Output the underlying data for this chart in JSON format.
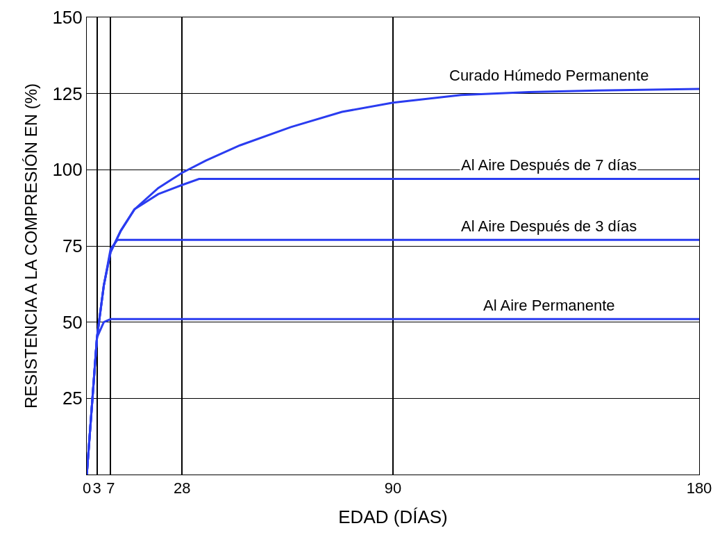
{
  "chart_data": {
    "type": "line",
    "xlabel": "EDAD (DÍAS)",
    "ylabel": "RESISTENCIA A LA COMPRESIÓN EN (%)",
    "xlim": [
      0,
      180
    ],
    "xticks": [
      0,
      3,
      7,
      28,
      90,
      180
    ],
    "ylim": [
      0,
      150
    ],
    "yticks": [
      25,
      50,
      75,
      100,
      125,
      150
    ],
    "grid": true,
    "legend": false,
    "marker": "none",
    "line_style": "solid",
    "series": [
      {
        "name": "Curado Húmedo Permanente",
        "color": "#2a3cf0",
        "x": [
          0,
          3,
          5,
          7,
          10,
          14,
          21,
          28,
          35,
          45,
          60,
          75,
          90,
          110,
          130,
          150,
          180
        ],
        "values": [
          0,
          45,
          62,
          73,
          80,
          87,
          94,
          99,
          103,
          108,
          114,
          119,
          122,
          124.5,
          125.5,
          126,
          126.5
        ]
      },
      {
        "name": "Al Aire Después de 7 días",
        "color": "#2a3cf0",
        "x": [
          0,
          3,
          5,
          7,
          10,
          14,
          21,
          28,
          33,
          180
        ],
        "values": [
          0,
          45,
          62,
          73,
          80,
          87,
          92,
          95,
          97,
          97
        ]
      },
      {
        "name": "Al Aire Después de 3 días",
        "color": "#2a3cf0",
        "x": [
          0,
          3,
          5,
          7,
          9,
          180
        ],
        "values": [
          0,
          45,
          62,
          74,
          77,
          77
        ]
      },
      {
        "name": "Al Aire Permanente",
        "color": "#2a3cf0",
        "x": [
          0,
          3,
          5,
          7,
          180
        ],
        "values": [
          0,
          45,
          50,
          51,
          51
        ]
      }
    ]
  }
}
